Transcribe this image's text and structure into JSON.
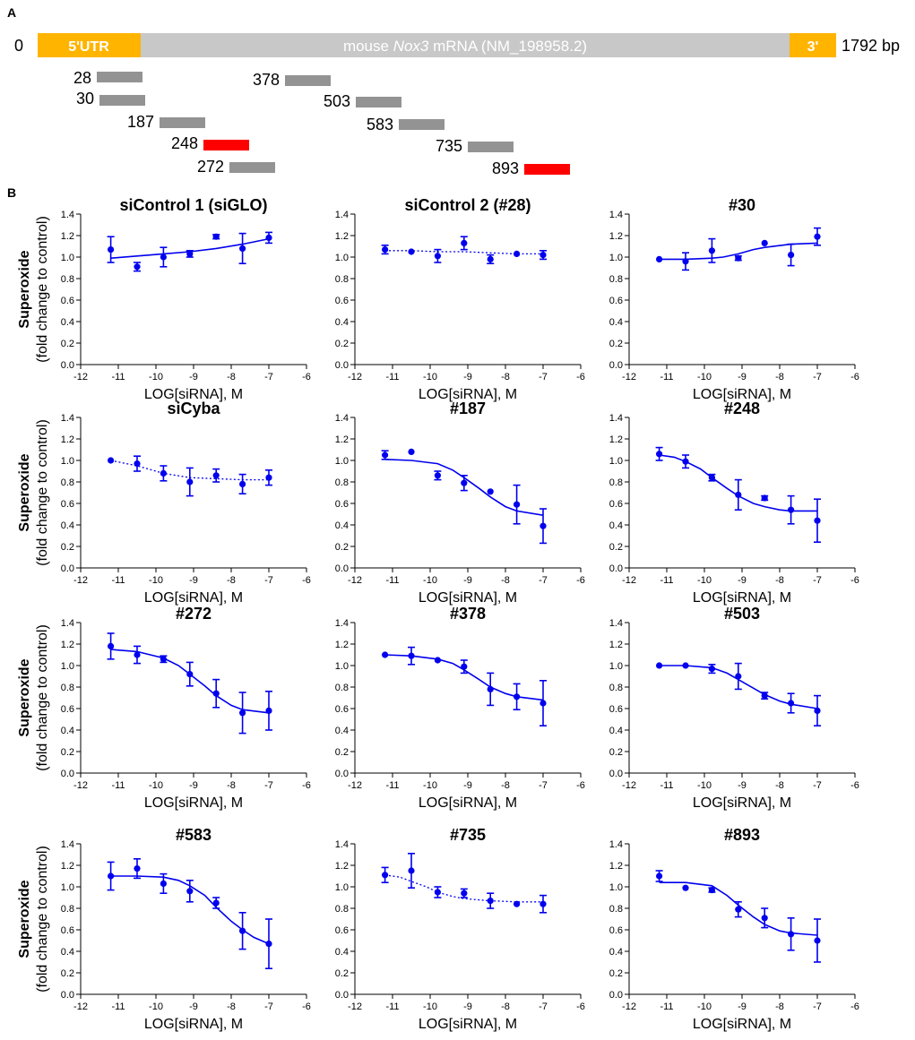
{
  "panel_a": {
    "label": "A",
    "start_label": "0",
    "end_label": "1792 bp",
    "utr5_label": "5'UTR",
    "utr3_label": "3'",
    "transcript_prefix": "mouse ",
    "transcript_gene": "Nox3",
    "transcript_suffix": " mRNA (NM_198958.2)",
    "colors": {
      "bar": "#c8c8c8",
      "utr": "#ffb400",
      "sirna": "#939393",
      "highlight": "#ff0000"
    },
    "sirnas": [
      {
        "label": "28",
        "highlight": false
      },
      {
        "label": "30",
        "highlight": false
      },
      {
        "label": "187",
        "highlight": false
      },
      {
        "label": "248",
        "highlight": true
      },
      {
        "label": "272",
        "highlight": false
      },
      {
        "label": "378",
        "highlight": false
      },
      {
        "label": "503",
        "highlight": false
      },
      {
        "label": "583",
        "highlight": false
      },
      {
        "label": "735",
        "highlight": false
      },
      {
        "label": "893",
        "highlight": true
      }
    ]
  },
  "panel_b": {
    "label": "B",
    "ylabel_line1": "Superoxide",
    "ylabel_line2": "(fold change to control)",
    "xlabel": "LOG[siRNA], M",
    "colors": {
      "series": "#0000ee"
    }
  },
  "chart_data": [
    {
      "type": "scatter",
      "title": "siControl 1 (siGLO)",
      "xlim": [
        -12,
        -6
      ],
      "ylim": [
        0,
        1.4
      ],
      "xticks": [
        "-12",
        "-11",
        "-10",
        "-9",
        "-8",
        "-7",
        "-6"
      ],
      "yticks": [
        "0.0",
        "0.2",
        "0.4",
        "0.6",
        "0.8",
        "1.0",
        "1.2",
        "1.4"
      ],
      "x": [
        -11.2,
        -10.5,
        -9.8,
        -9.1,
        -8.4,
        -7.7,
        -7.0
      ],
      "y": [
        1.07,
        0.91,
        1.0,
        1.03,
        1.19,
        1.08,
        1.18
      ],
      "err": [
        0.12,
        0.04,
        0.09,
        0.03,
        0.02,
        0.14,
        0.05
      ],
      "fit": {
        "style": "solid",
        "x": [
          -11.2,
          -10.5,
          -9.8,
          -9.1,
          -8.4,
          -7.7,
          -7.0
        ],
        "y": [
          0.99,
          1.01,
          1.03,
          1.05,
          1.08,
          1.12,
          1.17
        ]
      }
    },
    {
      "type": "scatter",
      "title": "siControl 2 (#28)",
      "xlim": [
        -12,
        -6
      ],
      "ylim": [
        0,
        1.4
      ],
      "xticks": [
        "-12",
        "-11",
        "-10",
        "-9",
        "-8",
        "-7",
        "-6"
      ],
      "yticks": [
        "0.0",
        "0.2",
        "0.4",
        "0.6",
        "0.8",
        "1.0",
        "1.2",
        "1.4"
      ],
      "x": [
        -11.2,
        -10.5,
        -9.8,
        -9.1,
        -8.4,
        -7.7,
        -7.0
      ],
      "y": [
        1.07,
        1.05,
        1.01,
        1.13,
        0.98,
        1.03,
        1.02
      ],
      "err": [
        0.04,
        0.0,
        0.06,
        0.06,
        0.04,
        0.0,
        0.04
      ],
      "fit": {
        "style": "dotted",
        "x": [
          -11.2,
          -10.5,
          -9.8,
          -9.1,
          -8.4,
          -7.7,
          -7.0
        ],
        "y": [
          1.06,
          1.06,
          1.05,
          1.05,
          1.04,
          1.03,
          1.03
        ]
      }
    },
    {
      "type": "scatter",
      "title": "#30",
      "xlim": [
        -12,
        -6
      ],
      "ylim": [
        0,
        1.4
      ],
      "xticks": [
        "-12",
        "-11",
        "-10",
        "-9",
        "-8",
        "-7",
        "-6"
      ],
      "yticks": [
        "0.0",
        "0.2",
        "0.4",
        "0.6",
        "0.8",
        "1.0",
        "1.2",
        "1.4"
      ],
      "x": [
        -11.2,
        -10.5,
        -9.8,
        -9.1,
        -8.4,
        -7.7,
        -7.0
      ],
      "y": [
        0.98,
        0.96,
        1.06,
        0.99,
        1.13,
        1.02,
        1.19
      ],
      "err": [
        0.0,
        0.08,
        0.11,
        0.02,
        0.0,
        0.1,
        0.08
      ],
      "fit": {
        "style": "solid",
        "x": [
          -11.2,
          -10.5,
          -9.8,
          -9.5,
          -9.1,
          -8.7,
          -8.4,
          -7.7,
          -7.0
        ],
        "y": [
          0.98,
          0.98,
          0.99,
          1.0,
          1.03,
          1.07,
          1.09,
          1.12,
          1.13
        ]
      }
    },
    {
      "type": "scatter",
      "title": "siCyba",
      "xlim": [
        -12,
        -6
      ],
      "ylim": [
        0,
        1.4
      ],
      "xticks": [
        "-12",
        "-11",
        "-10",
        "-9",
        "-8",
        "-7",
        "-6"
      ],
      "yticks": [
        "0.0",
        "0.2",
        "0.4",
        "0.6",
        "0.8",
        "1.0",
        "1.2",
        "1.4"
      ],
      "x": [
        -11.2,
        -10.5,
        -9.8,
        -9.1,
        -8.4,
        -7.7,
        -7.0
      ],
      "y": [
        1.0,
        0.97,
        0.88,
        0.8,
        0.86,
        0.78,
        0.84
      ],
      "err": [
        0.0,
        0.07,
        0.07,
        0.13,
        0.06,
        0.09,
        0.07
      ],
      "fit": {
        "style": "dotted",
        "x": [
          -11.2,
          -10.5,
          -9.8,
          -9.1,
          -8.4,
          -7.7,
          -7.0
        ],
        "y": [
          1.0,
          0.95,
          0.88,
          0.84,
          0.83,
          0.82,
          0.82
        ]
      }
    },
    {
      "type": "scatter",
      "title": "#187",
      "xlim": [
        -12,
        -6
      ],
      "ylim": [
        0,
        1.4
      ],
      "xticks": [
        "-12",
        "-11",
        "-10",
        "-9",
        "-8",
        "-7",
        "-6"
      ],
      "yticks": [
        "0.0",
        "0.2",
        "0.4",
        "0.6",
        "0.8",
        "1.0",
        "1.2",
        "1.4"
      ],
      "x": [
        -11.2,
        -10.5,
        -9.8,
        -9.1,
        -8.4,
        -7.7,
        -7.0
      ],
      "y": [
        1.05,
        1.08,
        0.86,
        0.79,
        0.71,
        0.59,
        0.39
      ],
      "err": [
        0.04,
        0.0,
        0.04,
        0.07,
        0.0,
        0.18,
        0.16
      ],
      "fit": {
        "style": "solid",
        "x": [
          -11.2,
          -10.5,
          -9.8,
          -9.4,
          -9.1,
          -8.7,
          -8.4,
          -8.0,
          -7.7,
          -7.0
        ],
        "y": [
          1.01,
          1.0,
          0.97,
          0.91,
          0.84,
          0.74,
          0.66,
          0.57,
          0.53,
          0.49
        ]
      }
    },
    {
      "type": "scatter",
      "title": "#248",
      "xlim": [
        -12,
        -6
      ],
      "ylim": [
        0,
        1.4
      ],
      "xticks": [
        "-12",
        "-11",
        "-10",
        "-9",
        "-8",
        "-7",
        "-6"
      ],
      "yticks": [
        "0.0",
        "0.2",
        "0.4",
        "0.6",
        "0.8",
        "1.0",
        "1.2",
        "1.4"
      ],
      "x": [
        -11.2,
        -10.5,
        -9.8,
        -9.1,
        -8.4,
        -7.7,
        -7.0
      ],
      "y": [
        1.06,
        0.99,
        0.84,
        0.68,
        0.65,
        0.54,
        0.44
      ],
      "err": [
        0.06,
        0.06,
        0.03,
        0.14,
        0.02,
        0.13,
        0.2
      ],
      "fit": {
        "style": "solid",
        "x": [
          -11.2,
          -10.8,
          -10.5,
          -10.1,
          -9.8,
          -9.4,
          -9.1,
          -8.7,
          -8.4,
          -8.0,
          -7.7,
          -7.0
        ],
        "y": [
          1.05,
          1.03,
          0.99,
          0.92,
          0.84,
          0.74,
          0.67,
          0.6,
          0.57,
          0.54,
          0.53,
          0.53
        ]
      }
    },
    {
      "type": "scatter",
      "title": "#272",
      "xlim": [
        -12,
        -6
      ],
      "ylim": [
        0,
        1.4
      ],
      "xticks": [
        "-12",
        "-11",
        "-10",
        "-9",
        "-8",
        "-7",
        "-6"
      ],
      "yticks": [
        "0.0",
        "0.2",
        "0.4",
        "0.6",
        "0.8",
        "1.0",
        "1.2",
        "1.4"
      ],
      "x": [
        -11.2,
        -10.5,
        -9.8,
        -9.1,
        -8.4,
        -7.7,
        -7.0
      ],
      "y": [
        1.18,
        1.1,
        1.06,
        0.92,
        0.74,
        0.56,
        0.58
      ],
      "err": [
        0.12,
        0.08,
        0.03,
        0.11,
        0.13,
        0.19,
        0.18
      ],
      "fit": {
        "style": "solid",
        "x": [
          -11.2,
          -10.5,
          -9.8,
          -9.4,
          -9.1,
          -8.7,
          -8.4,
          -8.0,
          -7.7,
          -7.0
        ],
        "y": [
          1.15,
          1.13,
          1.07,
          1.0,
          0.92,
          0.81,
          0.72,
          0.63,
          0.59,
          0.56
        ]
      }
    },
    {
      "type": "scatter",
      "title": "#378",
      "xlim": [
        -12,
        -6
      ],
      "ylim": [
        0,
        1.4
      ],
      "xticks": [
        "-12",
        "-11",
        "-10",
        "-9",
        "-8",
        "-7",
        "-6"
      ],
      "yticks": [
        "0.0",
        "0.2",
        "0.4",
        "0.6",
        "0.8",
        "1.0",
        "1.2",
        "1.4"
      ],
      "x": [
        -11.2,
        -10.5,
        -9.8,
        -9.1,
        -8.4,
        -7.7,
        -7.0
      ],
      "y": [
        1.1,
        1.09,
        1.05,
        0.99,
        0.78,
        0.71,
        0.65
      ],
      "err": [
        0.0,
        0.08,
        0.0,
        0.06,
        0.15,
        0.12,
        0.21
      ],
      "fit": {
        "style": "solid",
        "x": [
          -11.2,
          -10.5,
          -9.8,
          -9.4,
          -9.1,
          -8.7,
          -8.4,
          -8.0,
          -7.7,
          -7.0
        ],
        "y": [
          1.1,
          1.09,
          1.06,
          1.02,
          0.96,
          0.87,
          0.8,
          0.74,
          0.71,
          0.68
        ]
      }
    },
    {
      "type": "scatter",
      "title": "#503",
      "xlim": [
        -12,
        -6
      ],
      "ylim": [
        0,
        1.4
      ],
      "xticks": [
        "-12",
        "-11",
        "-10",
        "-9",
        "-8",
        "-7",
        "-6"
      ],
      "yticks": [
        "0.0",
        "0.2",
        "0.4",
        "0.6",
        "0.8",
        "1.0",
        "1.2",
        "1.4"
      ],
      "x": [
        -11.2,
        -10.5,
        -9.8,
        -9.1,
        -8.4,
        -7.7,
        -7.0
      ],
      "y": [
        1.0,
        1.0,
        0.97,
        0.9,
        0.72,
        0.65,
        0.58
      ],
      "err": [
        0.0,
        0.0,
        0.04,
        0.12,
        0.03,
        0.09,
        0.14
      ],
      "fit": {
        "style": "solid",
        "x": [
          -11.2,
          -10.5,
          -9.8,
          -9.4,
          -9.1,
          -8.7,
          -8.4,
          -8.0,
          -7.7,
          -7.0
        ],
        "y": [
          1.0,
          1.0,
          0.98,
          0.93,
          0.87,
          0.79,
          0.73,
          0.67,
          0.64,
          0.6
        ]
      }
    },
    {
      "type": "scatter",
      "title": "#583",
      "xlim": [
        -12,
        -6
      ],
      "ylim": [
        0,
        1.4
      ],
      "xticks": [
        "-12",
        "-11",
        "-10",
        "-9",
        "-8",
        "-7",
        "-6"
      ],
      "yticks": [
        "0.0",
        "0.2",
        "0.4",
        "0.6",
        "0.8",
        "1.0",
        "1.2",
        "1.4"
      ],
      "x": [
        -11.2,
        -10.5,
        -9.8,
        -9.1,
        -8.4,
        -7.7,
        -7.0
      ],
      "y": [
        1.1,
        1.17,
        1.03,
        0.96,
        0.85,
        0.59,
        0.47
      ],
      "err": [
        0.13,
        0.09,
        0.09,
        0.1,
        0.05,
        0.17,
        0.23
      ],
      "fit": {
        "style": "solid",
        "x": [
          -11.2,
          -10.5,
          -9.8,
          -9.4,
          -9.1,
          -8.7,
          -8.4,
          -8.0,
          -7.7,
          -7.4,
          -7.0
        ],
        "y": [
          1.1,
          1.1,
          1.09,
          1.06,
          1.01,
          0.92,
          0.81,
          0.68,
          0.6,
          0.53,
          0.47
        ]
      }
    },
    {
      "type": "scatter",
      "title": "#735",
      "xlim": [
        -12,
        -6
      ],
      "ylim": [
        0,
        1.4
      ],
      "xticks": [
        "-12",
        "-11",
        "-10",
        "-9",
        "-8",
        "-7",
        "-6"
      ],
      "yticks": [
        "0.0",
        "0.2",
        "0.4",
        "0.6",
        "0.8",
        "1.0",
        "1.2",
        "1.4"
      ],
      "x": [
        -11.2,
        -10.5,
        -9.8,
        -9.1,
        -8.4,
        -7.7,
        -7.0
      ],
      "y": [
        1.11,
        1.15,
        0.95,
        0.94,
        0.87,
        0.84,
        0.84
      ],
      "err": [
        0.07,
        0.16,
        0.05,
        0.04,
        0.07,
        0.0,
        0.08
      ],
      "fit": {
        "style": "dotted",
        "x": [
          -11.2,
          -10.8,
          -10.5,
          -10.1,
          -9.8,
          -9.4,
          -9.1,
          -8.4,
          -7.7,
          -7.0
        ],
        "y": [
          1.11,
          1.09,
          1.05,
          1.0,
          0.95,
          0.91,
          0.89,
          0.87,
          0.86,
          0.86
        ]
      }
    },
    {
      "type": "scatter",
      "title": "#893",
      "xlim": [
        -12,
        -6
      ],
      "ylim": [
        0,
        1.4
      ],
      "xticks": [
        "-12",
        "-11",
        "-10",
        "-9",
        "-8",
        "-7",
        "-6"
      ],
      "yticks": [
        "0.0",
        "0.2",
        "0.4",
        "0.6",
        "0.8",
        "1.0",
        "1.2",
        "1.4"
      ],
      "x": [
        -11.2,
        -10.5,
        -9.8,
        -9.1,
        -8.4,
        -7.7,
        -7.0
      ],
      "y": [
        1.1,
        0.99,
        0.97,
        0.79,
        0.71,
        0.56,
        0.5
      ],
      "err": [
        0.05,
        0.0,
        0.02,
        0.07,
        0.09,
        0.15,
        0.2
      ],
      "fit": {
        "style": "solid",
        "x": [
          -11.2,
          -10.5,
          -9.8,
          -9.4,
          -9.1,
          -8.7,
          -8.4,
          -8.0,
          -7.7,
          -7.0
        ],
        "y": [
          1.04,
          1.04,
          1.01,
          0.92,
          0.83,
          0.72,
          0.65,
          0.59,
          0.57,
          0.55
        ]
      }
    }
  ]
}
